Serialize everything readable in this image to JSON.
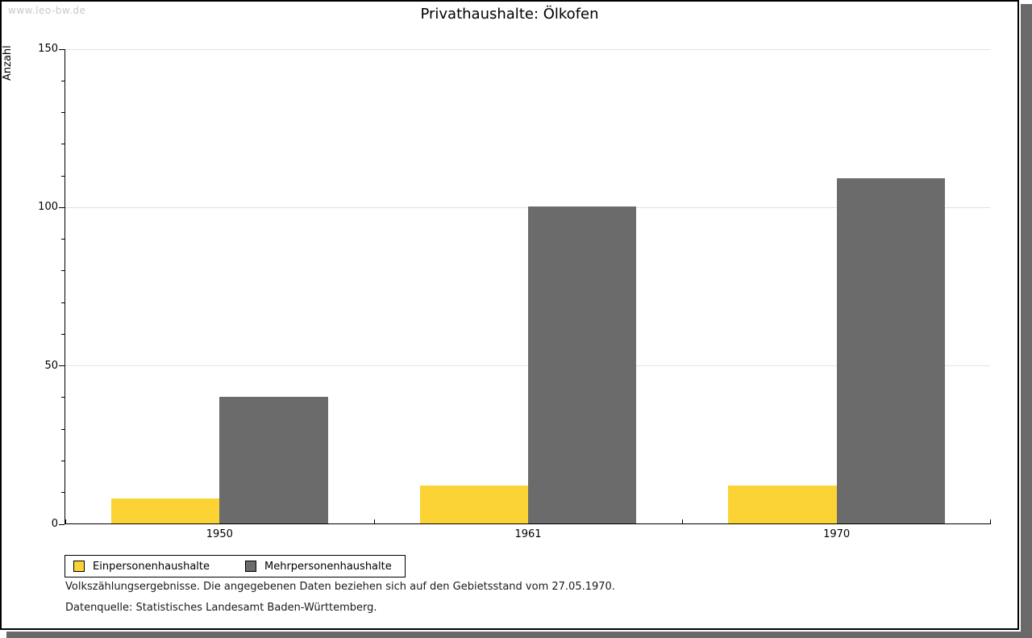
{
  "page": {
    "watermark": "www.leo-bw.de",
    "title": "Privathaushalte: Ölkofen",
    "footnote1": "Volkszählungsergebnisse. Die angegebenen Daten beziehen sich auf den Gebietsstand vom 27.05.1970.",
    "footnote2": "Datenquelle: Statistisches Landesamt Baden-Württemberg.",
    "colors": {
      "frame_border": "#000000",
      "frame_shadow": "#696969",
      "watermark": "#c8c8c8",
      "gridline": "#e2e2e2"
    }
  },
  "chart_data": {
    "type": "bar",
    "title": "Privathaushalte: Ölkofen",
    "categories": [
      "1950",
      "1961",
      "1970"
    ],
    "series": [
      {
        "name": "Einpersonenhaushalte",
        "color": "#fbd335",
        "values": [
          8,
          12,
          12
        ]
      },
      {
        "name": "Mehrpersonenhaushalte",
        "color": "#6b6b6b",
        "values": [
          40,
          100,
          109
        ]
      }
    ],
    "xlabel": "",
    "ylabel": "Anzahl",
    "ylim": [
      0,
      150
    ],
    "yticks": [
      0,
      50,
      100,
      150
    ],
    "minor_tick_step": 10,
    "grid": true,
    "legend_position": "bottom-left"
  }
}
